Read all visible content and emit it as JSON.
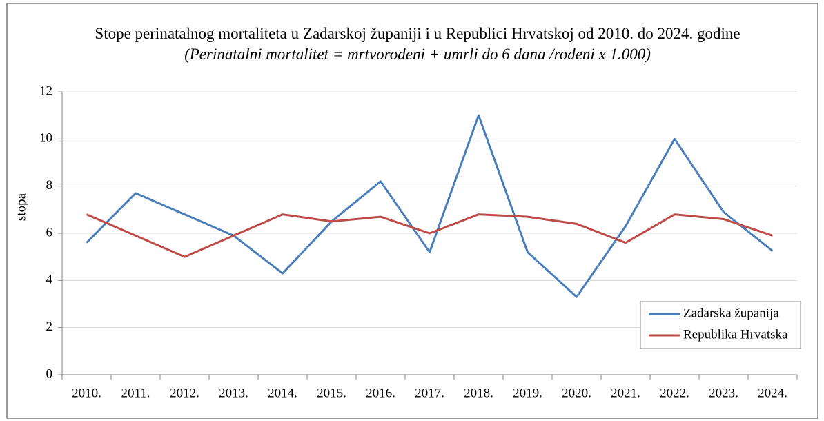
{
  "chart_data": {
    "type": "line",
    "title": "Stope perinatalnog mortaliteta u Zadarskoj županiji i u Republici Hrvatskoj od 2010. do 2024. godine",
    "subtitle": "(Perinatalni mortalitet = mrtvorođeni +  umrli do 6 dana /rođeni x 1.000)",
    "y_label": "stopa",
    "categories": [
      "2010.",
      "2011.",
      "2012.",
      "2013.",
      "2014.",
      "2015.",
      "2016.",
      "2017.",
      "2018.",
      "2019.",
      "2020.",
      "2021.",
      "2022.",
      "2023.",
      "2024."
    ],
    "series": [
      {
        "name": "Zadarska županija",
        "color": "#4a7ebb",
        "values": [
          5.6,
          7.7,
          6.8,
          5.9,
          4.3,
          6.5,
          8.2,
          5.2,
          11.0,
          5.2,
          3.3,
          6.3,
          10.0,
          6.9,
          5.25
        ]
      },
      {
        "name": "Republika Hrvatska",
        "color": "#be4b48",
        "values": [
          6.8,
          5.9,
          5.0,
          5.9,
          6.8,
          6.5,
          6.7,
          6.0,
          6.8,
          6.7,
          6.4,
          5.6,
          6.8,
          6.6,
          5.9
        ]
      }
    ],
    "ylim": [
      0,
      12
    ],
    "yticks": [
      0,
      2,
      4,
      6,
      8,
      10,
      12
    ],
    "grid": true,
    "legend": "lower right"
  }
}
